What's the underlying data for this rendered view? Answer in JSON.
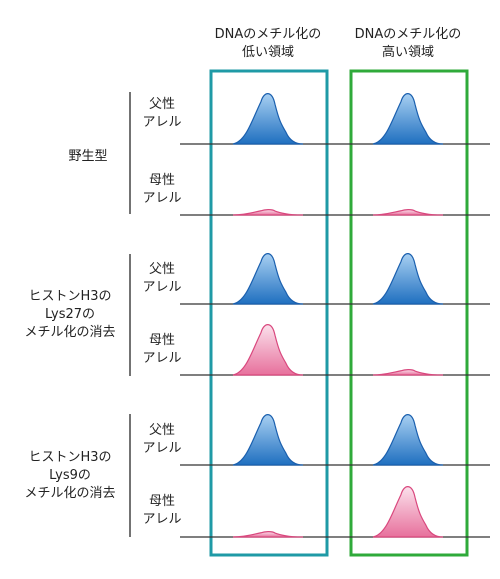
{
  "columns": [
    {
      "line1": "DNAのメチル化の",
      "line2": "低い領域",
      "box_color": "#1f9aa6"
    },
    {
      "line1": "DNAのメチル化の",
      "line2": "高い領域",
      "box_color": "#2faa3a"
    }
  ],
  "groups": [
    {
      "label_lines": [
        "野生型"
      ]
    },
    {
      "label_lines": [
        "ヒストンH3の",
        "Lys27の",
        "メチル化の消去"
      ]
    },
    {
      "label_lines": [
        "ヒストンH3の",
        "Lys9の",
        "メチル化の消去"
      ]
    }
  ],
  "alleles": {
    "paternal": [
      "父性",
      "アレル"
    ],
    "maternal": [
      "母性",
      "アレル"
    ]
  },
  "peaks": [
    {
      "group": 0,
      "allele": "paternal",
      "col": 0,
      "level": 1.0
    },
    {
      "group": 0,
      "allele": "paternal",
      "col": 1,
      "level": 1.0
    },
    {
      "group": 0,
      "allele": "maternal",
      "col": 0,
      "level": 0.1
    },
    {
      "group": 0,
      "allele": "maternal",
      "col": 1,
      "level": 0.1
    },
    {
      "group": 1,
      "allele": "paternal",
      "col": 0,
      "level": 1.0
    },
    {
      "group": 1,
      "allele": "paternal",
      "col": 1,
      "level": 1.0
    },
    {
      "group": 1,
      "allele": "maternal",
      "col": 0,
      "level": 1.0
    },
    {
      "group": 1,
      "allele": "maternal",
      "col": 1,
      "level": 0.1
    },
    {
      "group": 2,
      "allele": "paternal",
      "col": 0,
      "level": 1.0
    },
    {
      "group": 2,
      "allele": "paternal",
      "col": 1,
      "level": 1.0
    },
    {
      "group": 2,
      "allele": "maternal",
      "col": 0,
      "level": 0.1
    },
    {
      "group": 2,
      "allele": "maternal",
      "col": 1,
      "level": 1.0
    }
  ],
  "colors": {
    "paternal_fill_top": "#a8d0f2",
    "paternal_fill_bottom": "#1f6fc0",
    "paternal_stroke": "#1a5fae",
    "maternal_fill_top": "#fbe1ec",
    "maternal_fill_bottom": "#e7709c",
    "maternal_stroke": "#d9487e",
    "baseline": "#333333",
    "bracket": "#444444"
  }
}
